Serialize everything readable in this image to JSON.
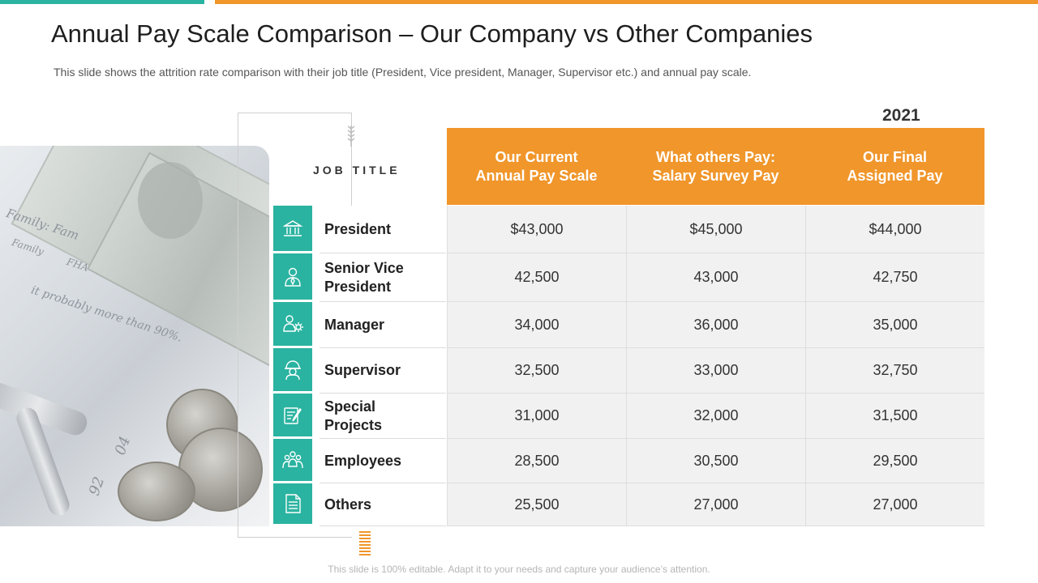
{
  "slide": {
    "title": "Annual Pay Scale Comparison – Our Company vs Other Companies",
    "subtitle": "This slide shows the attrition rate comparison with their job title (President, Vice president, Manager, Supervisor etc.) and annual pay scale.",
    "footer": "This slide is 100% editable. Adapt it to your needs and capture your audience’s attention."
  },
  "colors": {
    "accent_orange": "#f0962b",
    "accent_teal": "#2ab3a0"
  },
  "photo": {
    "texts": [
      "Family: Fam",
      "Family",
      "FHA",
      "it probably more than 90%.",
      "04",
      "92"
    ]
  },
  "table": {
    "job_title_label": "JOB TITLE",
    "year": "2021",
    "columns": [
      "Our Current\nAnnual Pay Scale",
      "What others Pay:\nSalary Survey Pay",
      "Our Final\nAssigned Pay"
    ],
    "rows": [
      {
        "icon": "bank-icon",
        "title": "President",
        "values": [
          "$43,000",
          "$45,000",
          "$44,000"
        ]
      },
      {
        "icon": "executive-person-icon",
        "title": "Senior Vice President",
        "values": [
          "42,500",
          "43,000",
          "42,750"
        ]
      },
      {
        "icon": "manager-gear-icon",
        "title": "Manager",
        "values": [
          "34,000",
          "36,000",
          "35,000"
        ]
      },
      {
        "icon": "supervisor-helmet-icon",
        "title": "Supervisor",
        "values": [
          "32,500",
          "33,000",
          "32,750"
        ]
      },
      {
        "icon": "project-document-icon",
        "title": "Special Projects",
        "values": [
          "31,000",
          "32,000",
          "31,500"
        ]
      },
      {
        "icon": "group-people-icon",
        "title": "Employees",
        "values": [
          "28,500",
          "30,500",
          "29,500"
        ]
      },
      {
        "icon": "document-list-icon",
        "title": "Others",
        "values": [
          "25,500",
          "27,000",
          "27,000"
        ]
      }
    ]
  }
}
